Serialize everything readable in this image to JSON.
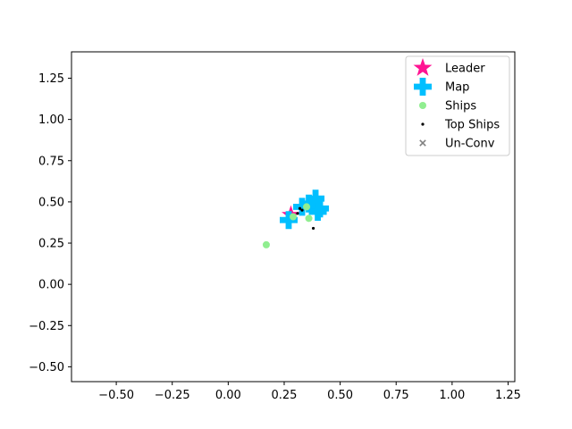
{
  "chart_data": {
    "type": "scatter",
    "title": "",
    "xlabel": "",
    "ylabel": "",
    "xlim": [
      -0.7,
      1.28
    ],
    "ylim": [
      -0.59,
      1.41
    ],
    "xticks": [
      -0.5,
      -0.25,
      0.0,
      0.25,
      0.5,
      0.75,
      1.0,
      1.25
    ],
    "xtick_labels": [
      "−0.50",
      "−0.25",
      "0.00",
      "0.25",
      "0.50",
      "0.75",
      "1.00",
      "1.25"
    ],
    "yticks": [
      -0.5,
      -0.25,
      0.0,
      0.25,
      0.5,
      0.75,
      1.0,
      1.25
    ],
    "ytick_labels": [
      "−0.50",
      "−0.25",
      "0.00",
      "0.25",
      "0.50",
      "0.75",
      "1.00",
      "1.25"
    ],
    "grid": false,
    "legend_position": "top-right",
    "series": [
      {
        "name": "Leader",
        "marker": "star",
        "color": "#ff1493",
        "points": [
          [
            0.28,
            0.42
          ]
        ]
      },
      {
        "name": "Map",
        "marker": "plus",
        "color": "#00bfff",
        "points": [
          [
            0.27,
            0.39
          ],
          [
            0.33,
            0.47
          ],
          [
            0.36,
            0.49
          ],
          [
            0.39,
            0.52
          ],
          [
            0.41,
            0.46
          ],
          [
            0.4,
            0.44
          ]
        ]
      },
      {
        "name": "Ships",
        "marker": "circle",
        "color": "#90ee90",
        "points": [
          [
            0.17,
            0.24
          ],
          [
            0.29,
            0.41
          ],
          [
            0.35,
            0.47
          ],
          [
            0.36,
            0.4
          ]
        ]
      },
      {
        "name": "Top Ships",
        "marker": "dot",
        "color": "#000000",
        "points": [
          [
            0.31,
            0.43
          ],
          [
            0.32,
            0.46
          ],
          [
            0.33,
            0.45
          ],
          [
            0.38,
            0.34
          ]
        ]
      },
      {
        "name": "Un-Conv",
        "marker": "x",
        "color": "#808080",
        "points": []
      }
    ]
  }
}
